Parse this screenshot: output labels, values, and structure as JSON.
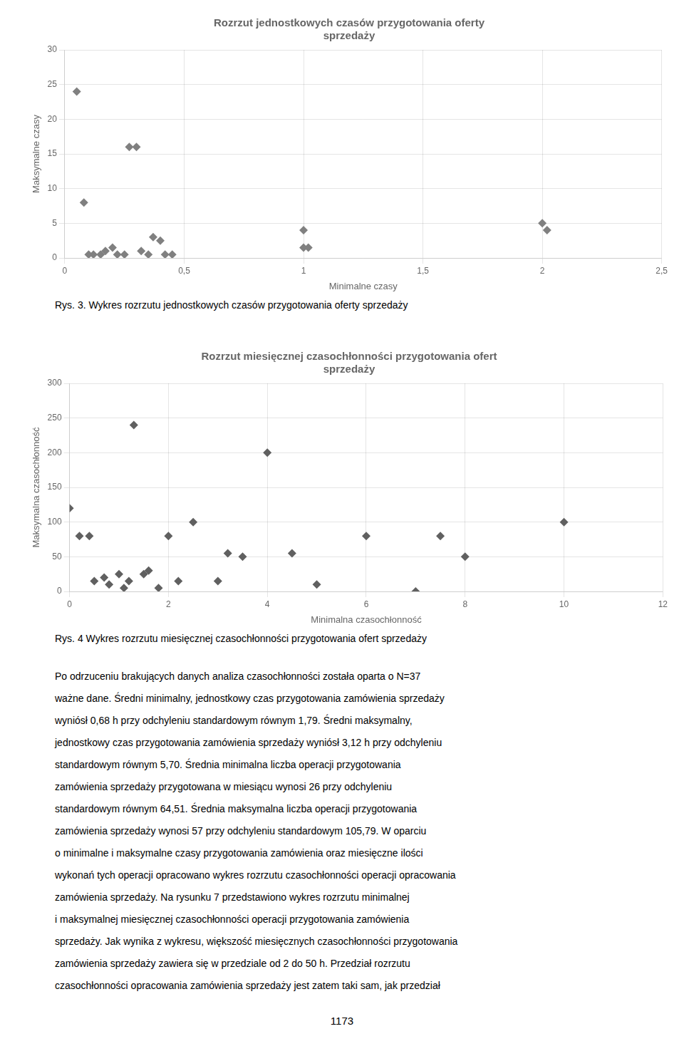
{
  "chart_data": [
    {
      "type": "scatter",
      "title": "Rozrzut jednostkowych czasów przygotowania oferty\nsprzedaży",
      "x_label": "Minimalne czasy",
      "y_label": "Maksymalne czasy",
      "xlim": [
        0,
        2.5
      ],
      "ylim": [
        0,
        30
      ],
      "xticks": [
        0,
        {
          "value": 0.5,
          "label": "0,5"
        },
        1,
        {
          "value": 1.5,
          "label": "1,5"
        },
        2,
        {
          "value": 2.5,
          "label": "2,5"
        }
      ],
      "yticks": [
        0,
        5,
        10,
        15,
        20,
        25,
        30
      ],
      "x": [
        0.05,
        0.08,
        0.1,
        0.12,
        0.15,
        0.17,
        0.2,
        0.22,
        0.25,
        0.27,
        0.3,
        0.32,
        0.35,
        0.37,
        0.4,
        0.42,
        0.45,
        1.0,
        1.0,
        1.02,
        2.0,
        2.02
      ],
      "values": [
        24,
        8,
        0.5,
        0.5,
        0.5,
        1,
        1.5,
        0.5,
        0.5,
        16,
        16,
        1,
        0.5,
        3,
        2.5,
        0.5,
        0.5,
        4,
        1.5,
        1.5,
        5,
        4
      ],
      "color": "#808080",
      "marker": "diamond",
      "grid": true,
      "caption": "Rys. 3. Wykres rozrzutu jednostkowych czasów przygotowania oferty sprzedaży"
    },
    {
      "type": "scatter",
      "title": "Rozrzut miesięcznej czasochłonności przygotowania ofert\nsprzedaży",
      "x_label": "Minimalna czasochłonność",
      "y_label": "Maksymalna czasochłonność",
      "xlim": [
        0,
        12
      ],
      "ylim": [
        0,
        300
      ],
      "xticks": [
        0,
        2,
        4,
        6,
        8,
        10,
        12
      ],
      "yticks": [
        0,
        50,
        100,
        150,
        200,
        250,
        300
      ],
      "x": [
        0.0,
        0.2,
        0.4,
        0.5,
        0.7,
        0.8,
        1.0,
        1.1,
        1.2,
        1.3,
        1.5,
        1.6,
        1.8,
        2.0,
        2.2,
        2.5,
        3.0,
        3.2,
        3.5,
        4.0,
        4.5,
        5.0,
        6.0,
        7.0,
        7.5,
        8.0,
        10.0
      ],
      "values": [
        120,
        80,
        80,
        15,
        20,
        10,
        25,
        5,
        15,
        240,
        25,
        30,
        5,
        80,
        15,
        100,
        15,
        55,
        50,
        200,
        55,
        10,
        80,
        0,
        80,
        50,
        100
      ],
      "color": "#606060",
      "marker": "diamond",
      "grid": true,
      "caption": "Rys. 4 Wykres rozrzutu miesięcznej czasochłonności przygotowania ofert sprzedaży"
    }
  ],
  "paragraph_lines": [
    "Po odrzuceniu brakujących danych analiza czasochłonności została oparta o N=37",
    "ważne dane. Średni minimalny, jednostkowy czas przygotowania zamówienia sprzedaży",
    "wyniósł 0,68 h przy odchyleniu standardowym równym 1,79. Średni maksymalny,",
    "jednostkowy czas przygotowania zamówienia sprzedaży wyniósł 3,12 h przy odchyleniu",
    "standardowym równym 5,70. Średnia minimalna liczba operacji przygotowania",
    "zamówienia sprzedaży przygotowana w miesiącu wynosi 26 przy odchyleniu",
    "standardowym równym 64,51. Średnia maksymalna liczba operacji przygotowania",
    "zamówienia sprzedaży wynosi 57 przy odchyleniu standardowym 105,79. W oparciu",
    "o minimalne i maksymalne czasy przygotowania zamówienia oraz miesięczne ilości",
    "wykonań tych operacji opracowano wykres rozrzutu czasochłonności operacji opracowania",
    "zamówienia sprzedaży. Na rysunku 7 przedstawiono wykres rozrzutu minimalnej",
    "i maksymalnej miesięcznej czasochłonności operacji przygotowania zamówienia",
    "sprzedaży. Jak wynika z wykresu, większość miesięcznych czasochłonności przygotowania",
    "zamówienia sprzedaży zawiera się w przedziale od 2 do 50 h. Przedział rozrzutu",
    "czasochłonności opracowania zamówienia sprzedaży jest zatem taki sam, jak przedział"
  ],
  "page_number": "1173"
}
